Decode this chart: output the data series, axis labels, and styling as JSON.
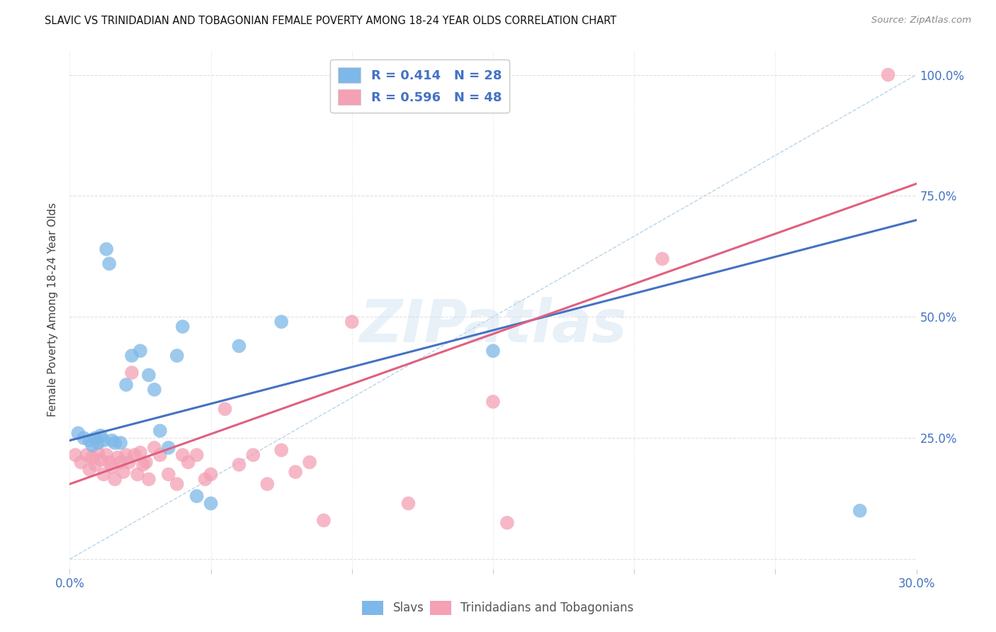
{
  "title": "SLAVIC VS TRINIDADIAN AND TOBAGONIAN FEMALE POVERTY AMONG 18-24 YEAR OLDS CORRELATION CHART",
  "source": "Source: ZipAtlas.com",
  "ylabel": "Female Poverty Among 18-24 Year Olds",
  "xlim": [
    0.0,
    0.3
  ],
  "ylim": [
    -0.02,
    1.05
  ],
  "blue_R": 0.414,
  "blue_N": 28,
  "pink_R": 0.596,
  "pink_N": 48,
  "blue_color": "#7db8e8",
  "pink_color": "#f4a0b5",
  "blue_line_color": "#4472c4",
  "pink_line_color": "#e06080",
  "blue_label": "Slavs",
  "pink_label": "Trinidadians and Tobagonians",
  "watermark": "ZIPatlas",
  "background_color": "#ffffff",
  "grid_color": "#e0e0e0",
  "tick_color": "#4472c4",
  "ref_line_color": "#b8d4e8",
  "blue_scatter_x": [
    0.003,
    0.005,
    0.007,
    0.008,
    0.009,
    0.01,
    0.011,
    0.012,
    0.013,
    0.014,
    0.015,
    0.016,
    0.018,
    0.02,
    0.022,
    0.025,
    0.028,
    0.03,
    0.032,
    0.035,
    0.038,
    0.04,
    0.045,
    0.05,
    0.06,
    0.075,
    0.15,
    0.28
  ],
  "blue_scatter_y": [
    0.26,
    0.25,
    0.245,
    0.235,
    0.25,
    0.24,
    0.255,
    0.245,
    0.64,
    0.61,
    0.245,
    0.24,
    0.24,
    0.36,
    0.42,
    0.43,
    0.38,
    0.35,
    0.265,
    0.23,
    0.42,
    0.48,
    0.13,
    0.115,
    0.44,
    0.49,
    0.43,
    0.1
  ],
  "pink_scatter_x": [
    0.002,
    0.004,
    0.006,
    0.007,
    0.008,
    0.009,
    0.01,
    0.011,
    0.012,
    0.013,
    0.014,
    0.015,
    0.016,
    0.017,
    0.018,
    0.019,
    0.02,
    0.021,
    0.022,
    0.023,
    0.024,
    0.025,
    0.026,
    0.027,
    0.028,
    0.03,
    0.032,
    0.035,
    0.038,
    0.04,
    0.042,
    0.045,
    0.048,
    0.05,
    0.055,
    0.06,
    0.065,
    0.07,
    0.075,
    0.08,
    0.085,
    0.09,
    0.1,
    0.12,
    0.15,
    0.155,
    0.21,
    0.29
  ],
  "pink_scatter_y": [
    0.215,
    0.2,
    0.215,
    0.185,
    0.21,
    0.195,
    0.22,
    0.205,
    0.175,
    0.215,
    0.2,
    0.19,
    0.165,
    0.21,
    0.2,
    0.18,
    0.215,
    0.2,
    0.385,
    0.215,
    0.175,
    0.22,
    0.195,
    0.2,
    0.165,
    0.23,
    0.215,
    0.175,
    0.155,
    0.215,
    0.2,
    0.215,
    0.165,
    0.175,
    0.31,
    0.195,
    0.215,
    0.155,
    0.225,
    0.18,
    0.2,
    0.08,
    0.49,
    0.115,
    0.325,
    0.075,
    0.62,
    1.0
  ],
  "blue_line_x0": 0.0,
  "blue_line_x1": 0.3,
  "blue_line_y0": 0.245,
  "blue_line_y1": 0.7,
  "pink_line_x0": 0.0,
  "pink_line_x1": 0.3,
  "pink_line_y0": 0.155,
  "pink_line_y1": 0.775
}
